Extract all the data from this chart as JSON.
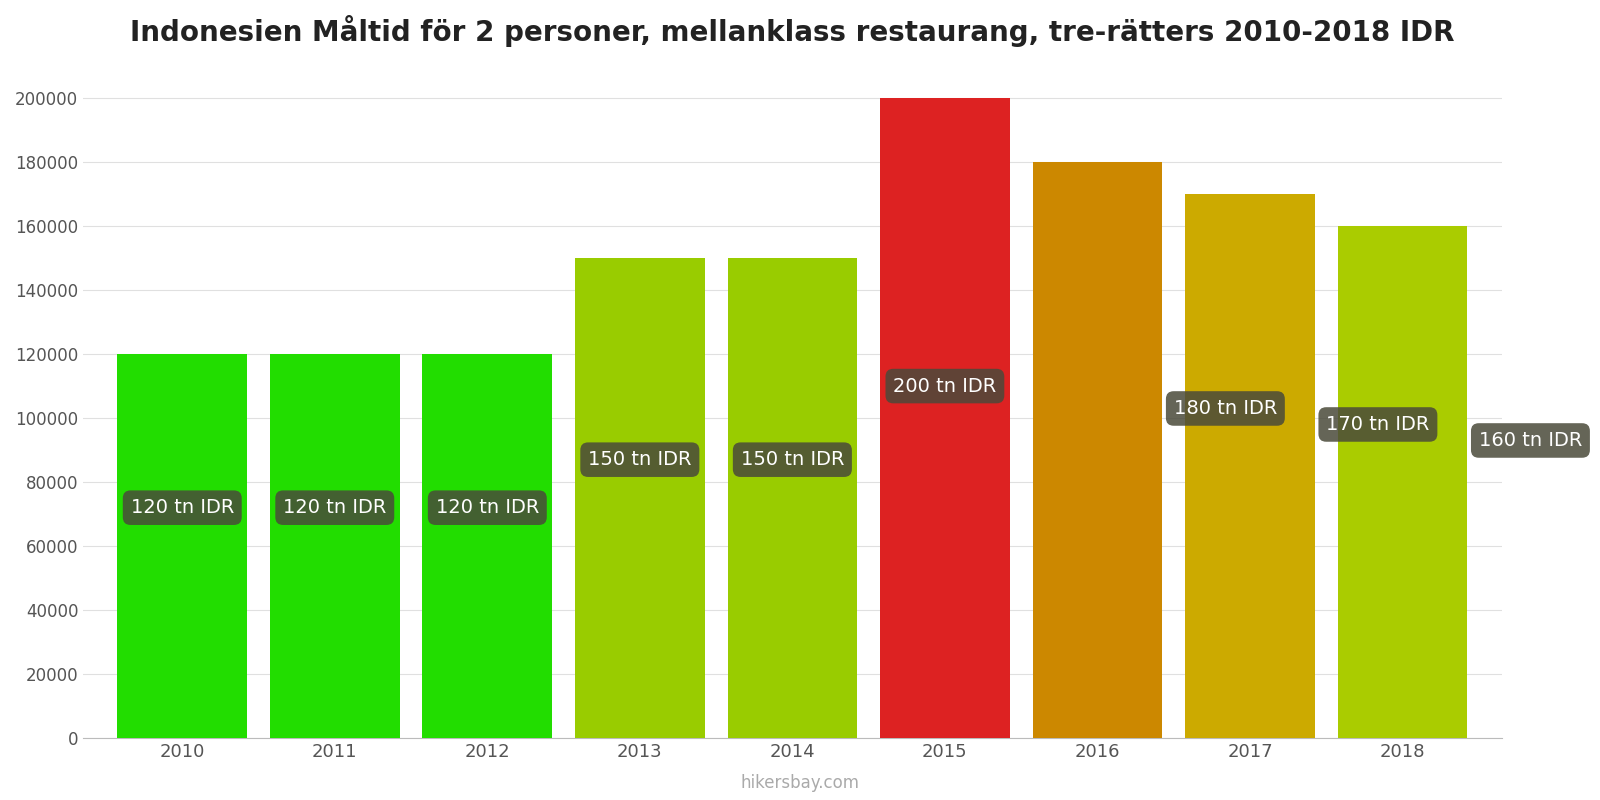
{
  "years": [
    2010,
    2011,
    2012,
    2013,
    2014,
    2015,
    2016,
    2017,
    2018
  ],
  "values": [
    120000,
    120000,
    120000,
    150000,
    150000,
    200000,
    180000,
    170000,
    160000
  ],
  "labels": [
    "120 tn IDR",
    "120 tn IDR",
    "120 tn IDR",
    "150 tn IDR",
    "150 tn IDR",
    "200 tn IDR",
    "180 tn IDR",
    "170 tn IDR",
    "160 tn IDR"
  ],
  "bar_colors": [
    "#22dd00",
    "#22dd00",
    "#22dd00",
    "#99cc00",
    "#99cc00",
    "#dd2222",
    "#cc8800",
    "#ccaa00",
    "#aacc00"
  ],
  "label_y_abs": [
    72000,
    72000,
    72000,
    87000,
    87000,
    110000,
    103000,
    98000,
    93000
  ],
  "label_x_offsets": [
    0,
    0,
    0,
    0,
    0,
    0,
    0.5,
    0.5,
    0.5
  ],
  "title": "Indonesien Måltid för 2 personer, mellanklass restaurang, tre-rätters 2010-2018 IDR",
  "ylim": [
    0,
    210000
  ],
  "yticks": [
    0,
    20000,
    40000,
    60000,
    80000,
    100000,
    120000,
    140000,
    160000,
    180000,
    200000
  ],
  "background_color": "#ffffff",
  "grid_color": "#e0e0e0",
  "label_box_color": "#4a4a3a",
  "label_text_color": "#ffffff",
  "watermark": "hikersbay.com",
  "title_fontsize": 20,
  "label_fontsize": 14,
  "bar_width": 0.85
}
